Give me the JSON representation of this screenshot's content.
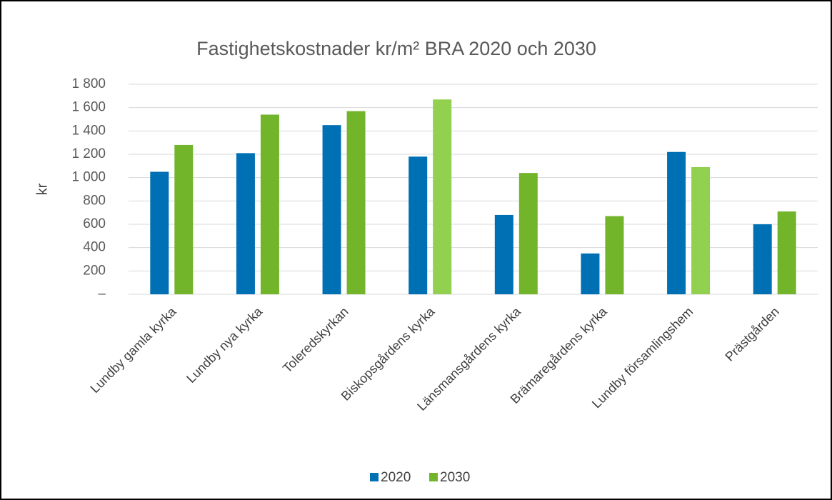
{
  "chart_data": {
    "type": "bar",
    "title": "Fastighetskostnader kr/m² BRA 2020 och 2030",
    "ylabel": "kr",
    "categories": [
      "Lundby gamla kyrka",
      "Lundby nya kyrka",
      "Toleredskyrkan",
      "Biskopsgårdens kyrka",
      "Länsmansgårdens kyrka",
      "Brämaregårdens kyrka",
      "Lundby församlingshem",
      "Prästgården"
    ],
    "series": [
      {
        "name": "2020",
        "color": "#0070b4",
        "values": [
          1050,
          1210,
          1450,
          1180,
          680,
          350,
          1220,
          600
        ]
      },
      {
        "name": "2030",
        "color": "#72b52a",
        "colors": [
          "#72b52a",
          "#72b52a",
          "#72b52a",
          "#92d050",
          "#72b52a",
          "#72b52a",
          "#92d050",
          "#72b52a"
        ],
        "values": [
          1280,
          1540,
          1570,
          1670,
          1040,
          670,
          1090,
          710
        ]
      }
    ],
    "ylim": [
      0,
      1800
    ],
    "yticks": [
      {
        "value": 0,
        "label": "–"
      },
      200,
      400,
      600,
      800,
      {
        "value": 1000,
        "label": "1 000"
      },
      {
        "value": 1200,
        "label": "1 200"
      },
      {
        "value": 1400,
        "label": "1 400"
      },
      {
        "value": 1600,
        "label": "1 600"
      },
      {
        "value": 1800,
        "label": "1 800"
      }
    ],
    "grid": true,
    "legend": "bottom"
  }
}
